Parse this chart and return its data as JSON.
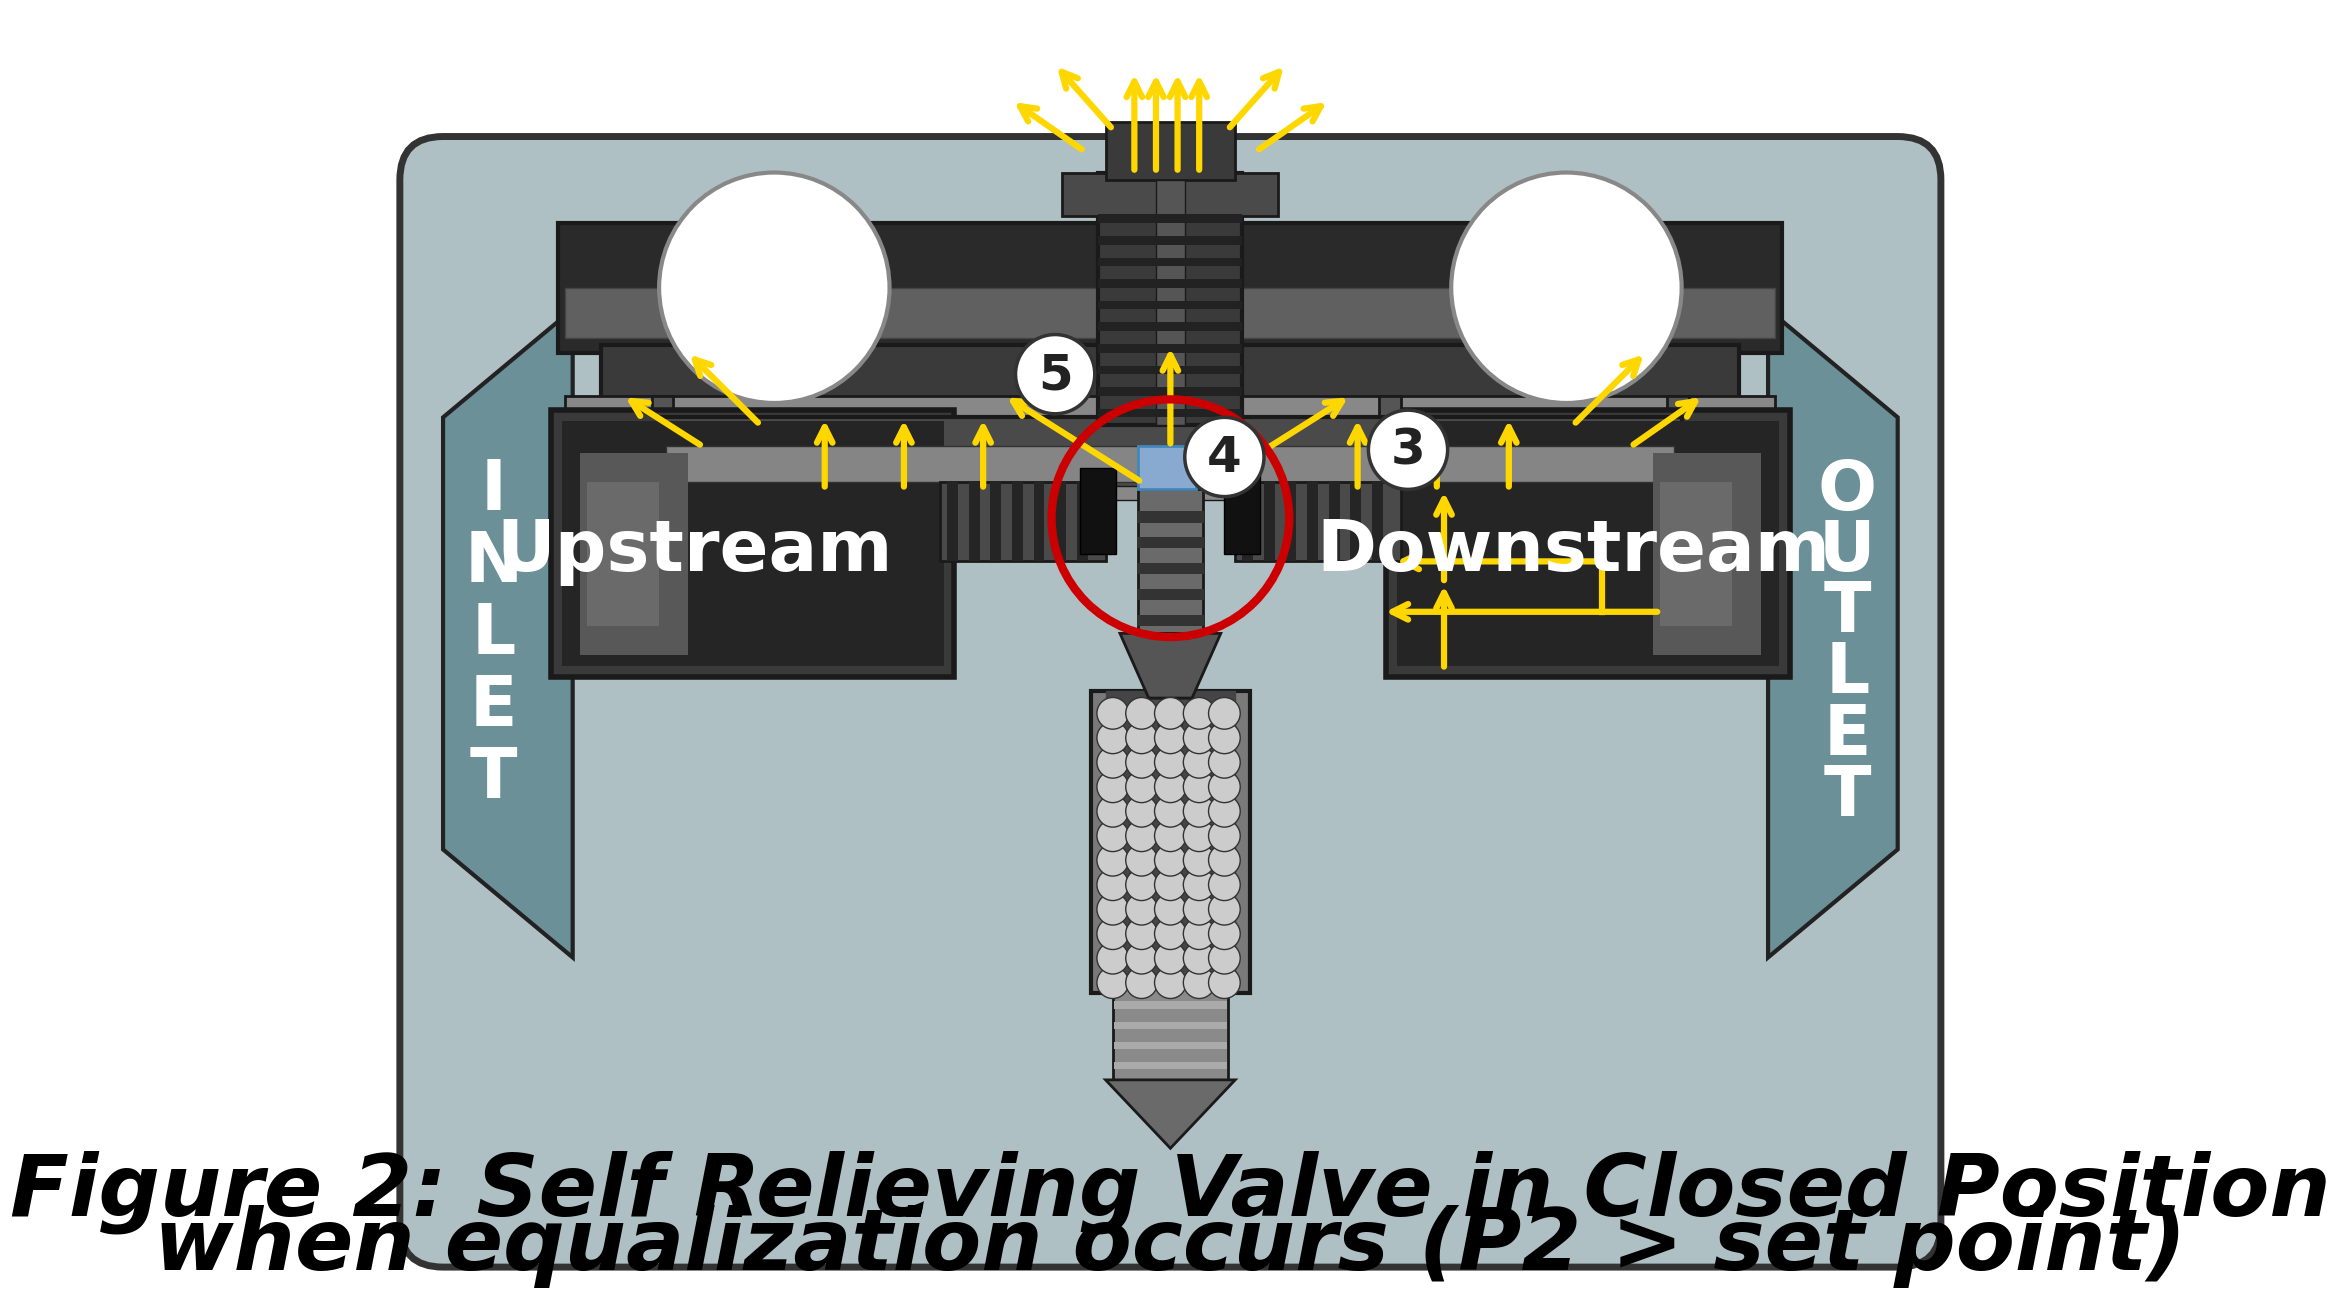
{
  "title_line1": "Figure 2: Self Relieving Valve in Closed Position",
  "title_line2": "when equalization occurs (P2 > set point)",
  "bg_color": "#ffffff",
  "body_bg": "#adbfc4",
  "body_bg_dark": "#7a9ca4",
  "dark_metal": "#3a3a3a",
  "mid_metal": "#666666",
  "light_metal": "#999999",
  "very_dark": "#1a1a1a",
  "arrow_color": "#FFD700",
  "red_circle_color": "#cc0000",
  "inlet_text_color": "#ffffff",
  "outlet_text_color": "#ffffff",
  "upstream_text": "Upstream",
  "downstream_text": "Downstream",
  "inlet_label": "I\nN\nL\nE\nT",
  "outlet_label": "O\nU\nT\nL\nE\nT"
}
